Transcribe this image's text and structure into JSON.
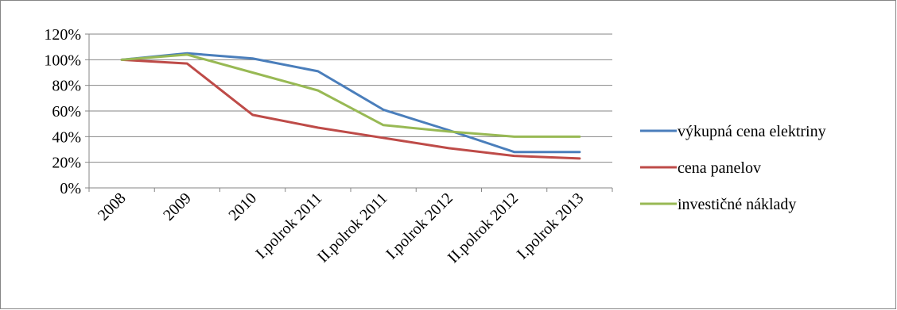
{
  "chart_data": {
    "type": "line",
    "categories": [
      "2008",
      "2009",
      "2010",
      "I.polrok 2011",
      "II.polrok 2011",
      "I.polrok 2012",
      "II.polrok 2012",
      "I.polrok 2013"
    ],
    "y_ticks": [
      "0%",
      "20%",
      "40%",
      "60%",
      "80%",
      "100%",
      "120%"
    ],
    "ylim": [
      0,
      120
    ],
    "grid": true,
    "legend_position": "right",
    "series": [
      {
        "name": "výkupná cena elektriny",
        "color": "#4a7ebb",
        "values": [
          100,
          105,
          101,
          91,
          61,
          45,
          28,
          28
        ]
      },
      {
        "name": "cena panelov",
        "color": "#be4b48",
        "values": [
          100,
          97,
          57,
          47,
          39,
          31,
          25,
          23
        ]
      },
      {
        "name": "investičné náklady",
        "color": "#98b954",
        "values": [
          100,
          104,
          90,
          76,
          49,
          44,
          40,
          40
        ]
      }
    ]
  }
}
